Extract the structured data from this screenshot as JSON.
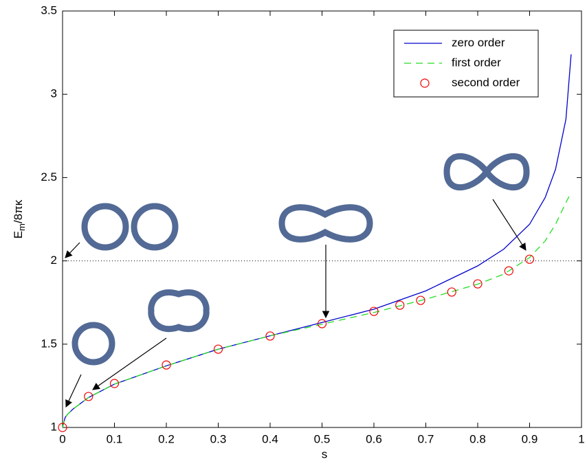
{
  "chart_data": {
    "type": "line",
    "xlabel": "s",
    "ylabel": {
      "base": "E",
      "subscript": "m",
      "rest": "/8πκ"
    },
    "xlim": [
      0,
      1
    ],
    "ylim": [
      1,
      3.5
    ],
    "xticks": [
      0,
      0.1,
      0.2,
      0.3,
      0.4,
      0.5,
      0.6,
      0.7,
      0.8,
      0.9,
      1
    ],
    "yticks": [
      1,
      1.5,
      2,
      2.5,
      3,
      3.5
    ],
    "reference_line": 2,
    "legend": "upper right",
    "series": [
      {
        "name": "zero order",
        "color": "#0000cc",
        "style": "solid",
        "x": [
          0,
          0.005,
          0.01,
          0.02,
          0.05,
          0.1,
          0.2,
          0.3,
          0.4,
          0.5,
          0.6,
          0.7,
          0.8,
          0.85,
          0.9,
          0.93,
          0.95,
          0.97,
          0.98
        ],
        "values": [
          1,
          1.06,
          1.08,
          1.11,
          1.18,
          1.26,
          1.37,
          1.47,
          1.55,
          1.63,
          1.71,
          1.82,
          1.97,
          2.07,
          2.22,
          2.38,
          2.55,
          2.85,
          3.24
        ]
      },
      {
        "name": "first order",
        "color": "#22dd22",
        "style": "dashed",
        "x": [
          0,
          0.005,
          0.01,
          0.02,
          0.05,
          0.1,
          0.2,
          0.3,
          0.4,
          0.5,
          0.6,
          0.7,
          0.8,
          0.85,
          0.9,
          0.93,
          0.95,
          0.97,
          0.98
        ],
        "values": [
          1,
          1.06,
          1.08,
          1.11,
          1.18,
          1.26,
          1.37,
          1.47,
          1.55,
          1.62,
          1.69,
          1.77,
          1.86,
          1.92,
          2.02,
          2.12,
          2.22,
          2.35,
          2.41
        ]
      },
      {
        "name": "second order",
        "color": "#ee0000",
        "style": "markers",
        "x": [
          0,
          0.05,
          0.1,
          0.2,
          0.3,
          0.4,
          0.5,
          0.6,
          0.65,
          0.69,
          0.75,
          0.8,
          0.86,
          0.9
        ],
        "values": [
          1,
          1.186,
          1.264,
          1.375,
          1.47,
          1.549,
          1.623,
          1.697,
          1.734,
          1.763,
          1.813,
          1.862,
          1.94,
          2.01
        ]
      }
    ]
  }
}
